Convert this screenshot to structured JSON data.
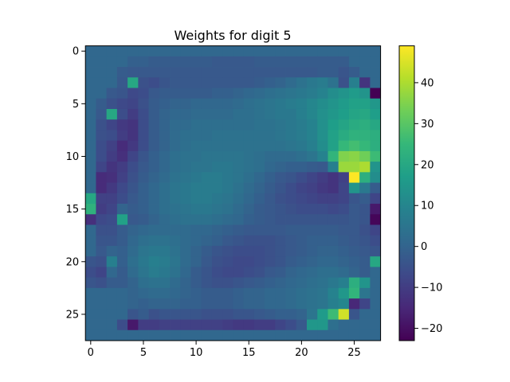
{
  "chart_data": {
    "type": "heatmap",
    "title": "Weights for digit 5",
    "xlabel": "",
    "ylabel": "",
    "rows": 28,
    "cols": 28,
    "x_ticks": [
      0,
      5,
      10,
      15,
      20,
      25
    ],
    "y_ticks": [
      0,
      5,
      10,
      15,
      20,
      25
    ],
    "colormap": "viridis",
    "colorbar": {
      "vmin": -23,
      "vmax": 49,
      "ticks": [
        -20,
        -10,
        0,
        10,
        20,
        30,
        40
      ]
    },
    "grid": false,
    "colors": {
      "viridis": [
        "#440154",
        "#482878",
        "#3e4989",
        "#31688e",
        "#26828e",
        "#1f9e89",
        "#35b779",
        "#6ece58",
        "#b5de2b",
        "#fde725"
      ]
    },
    "matrix": [
      [
        1,
        1,
        1,
        1,
        1,
        1,
        1,
        1,
        1,
        1,
        1,
        1,
        1,
        1,
        1,
        1,
        1,
        1,
        1,
        1,
        1,
        1,
        1,
        1,
        1,
        1,
        1,
        1
      ],
      [
        1,
        1,
        1,
        1,
        -1,
        -1,
        -2,
        -2,
        -2,
        -2,
        -2,
        -2,
        -3,
        -3,
        -3,
        -3,
        -2,
        -2,
        -2,
        -2,
        -2,
        -2,
        -2,
        -2,
        -2,
        1,
        1,
        1
      ],
      [
        1,
        1,
        1,
        -2,
        -3,
        -3,
        -3,
        -3,
        -3,
        -3,
        -3,
        -3,
        -3,
        -3,
        -3,
        -3,
        -3,
        -3,
        -3,
        -3,
        -3,
        -3,
        -2,
        -2,
        -4,
        -2,
        1,
        1
      ],
      [
        1,
        1,
        1,
        -3,
        20,
        -5,
        -6,
        -4,
        -3,
        -3,
        -3,
        -3,
        -3,
        -3,
        -3,
        -3,
        -2,
        -1,
        0,
        2,
        4,
        6,
        7,
        4,
        -5,
        8,
        -12,
        1
      ],
      [
        1,
        1,
        -3,
        -4,
        -7,
        -6,
        -3,
        -2,
        -2,
        -2,
        -2,
        -2,
        -1,
        -1,
        0,
        1,
        2,
        3,
        4,
        5,
        6,
        7,
        9,
        12,
        14,
        16,
        14,
        -23
      ],
      [
        1,
        -2,
        -5,
        -7,
        -8,
        -5,
        -2,
        -1,
        0,
        0,
        1,
        1,
        1,
        1,
        2,
        3,
        4,
        5,
        6,
        7,
        8,
        10,
        12,
        14,
        16,
        18,
        18,
        15
      ],
      [
        1,
        -3,
        20,
        -6,
        -10,
        -6,
        -2,
        0,
        1,
        1,
        2,
        2,
        2,
        2,
        3,
        3,
        4,
        5,
        6,
        6,
        8,
        10,
        13,
        15,
        17,
        19,
        20,
        17
      ],
      [
        1,
        -5,
        -8,
        -11,
        -12,
        -6,
        -2,
        0,
        2,
        2,
        3,
        3,
        3,
        3,
        3,
        3,
        4,
        4,
        5,
        6,
        7,
        9,
        13,
        17,
        19,
        21,
        22,
        20
      ],
      [
        1,
        -5,
        -6,
        -10,
        -12,
        -6,
        -2,
        0,
        2,
        3,
        3,
        3,
        4,
        4,
        4,
        4,
        4,
        4,
        5,
        6,
        7,
        9,
        13,
        18,
        21,
        23,
        23,
        22
      ],
      [
        1,
        -6,
        -9,
        -14,
        -11,
        -6,
        -2,
        0,
        2,
        3,
        4,
        4,
        4,
        4,
        4,
        4,
        4,
        4,
        4,
        5,
        6,
        8,
        12,
        18,
        25,
        27,
        25,
        22
      ],
      [
        1,
        -6,
        -10,
        -13,
        -8,
        -4,
        -1,
        1,
        3,
        4,
        4,
        5,
        5,
        5,
        5,
        4,
        3,
        2,
        2,
        2,
        3,
        5,
        9,
        24,
        35,
        36,
        33,
        26
      ],
      [
        1,
        -8,
        -12,
        -10,
        -6,
        -3,
        -1,
        1,
        3,
        4,
        5,
        5,
        6,
        6,
        5,
        4,
        3,
        1,
        0,
        -1,
        -1,
        -2,
        -3,
        8,
        38,
        38,
        40,
        14
      ],
      [
        1,
        -14,
        -13,
        -9,
        -5,
        -2,
        0,
        2,
        4,
        5,
        6,
        7,
        7,
        6,
        5,
        3,
        1,
        -1,
        -3,
        -4,
        -6,
        -8,
        -10,
        -12,
        -9,
        49,
        22,
        12
      ],
      [
        1,
        -14,
        -11,
        -7,
        -4,
        -1,
        1,
        3,
        5,
        6,
        7,
        7,
        7,
        6,
        4,
        2,
        0,
        -2,
        -4,
        -6,
        -8,
        -9,
        -11,
        -12,
        -8,
        14,
        6,
        -2
      ],
      [
        20,
        -9,
        -9,
        -6,
        -3,
        -1,
        1,
        3,
        5,
        6,
        7,
        7,
        6,
        5,
        3,
        1,
        -1,
        -3,
        -5,
        -6,
        -7,
        -8,
        -9,
        -9,
        -8,
        -4,
        -2,
        -8
      ],
      [
        23,
        -10,
        -8,
        0,
        -2,
        -1,
        1,
        3,
        4,
        5,
        6,
        6,
        5,
        4,
        2,
        0,
        -2,
        -3,
        -4,
        -5,
        -6,
        -6,
        -6,
        -7,
        -6,
        -3,
        -4,
        -18
      ],
      [
        -13,
        -7,
        -6,
        18,
        -3,
        -2,
        0,
        2,
        3,
        4,
        4,
        4,
        3,
        2,
        1,
        -1,
        -2,
        -3,
        -4,
        -4,
        -4,
        -4,
        -4,
        -4,
        -4,
        -3,
        -4,
        -22
      ],
      [
        1,
        -5,
        -5,
        -2,
        0,
        1,
        2,
        2,
        2,
        2,
        1,
        1,
        0,
        -1,
        -2,
        -3,
        -3,
        -3,
        -3,
        -2,
        -2,
        -2,
        -2,
        -2,
        -3,
        -3,
        -5,
        -8
      ],
      [
        1,
        -4,
        -4,
        -2,
        1,
        3,
        4,
        4,
        3,
        2,
        1,
        0,
        -1,
        -3,
        -4,
        -5,
        -5,
        -5,
        -4,
        -3,
        -2,
        -1,
        -1,
        -1,
        -2,
        -3,
        -4,
        -6
      ],
      [
        1,
        -3,
        0,
        -1,
        2,
        5,
        6,
        6,
        4,
        2,
        0,
        -2,
        -4,
        -5,
        -6,
        -6,
        -6,
        -5,
        -4,
        -3,
        -2,
        -1,
        0,
        0,
        -1,
        -2,
        -3,
        -4
      ],
      [
        -4,
        -5,
        8,
        -1,
        3,
        6,
        8,
        7,
        5,
        2,
        0,
        -3,
        -5,
        -6,
        -7,
        -7,
        -6,
        -5,
        -4,
        -2,
        -1,
        0,
        1,
        1,
        0,
        -1,
        -2,
        20
      ],
      [
        -6,
        -8,
        1,
        -2,
        2,
        5,
        7,
        6,
        4,
        1,
        -2,
        -4,
        -6,
        -7,
        -7,
        -6,
        -5,
        -3,
        -2,
        0,
        1,
        2,
        3,
        3,
        2,
        0,
        -2,
        1
      ],
      [
        -4,
        -5,
        -2,
        -2,
        0,
        3,
        4,
        4,
        2,
        0,
        -2,
        -4,
        -5,
        -5,
        -4,
        -3,
        -2,
        -1,
        0,
        1,
        2,
        3,
        4,
        6,
        8,
        22,
        14,
        1
      ],
      [
        1,
        1,
        1,
        1,
        0,
        1,
        2,
        2,
        1,
        0,
        -1,
        -2,
        -2,
        -2,
        -1,
        0,
        0,
        1,
        1,
        2,
        3,
        4,
        5,
        9,
        15,
        24,
        5,
        1
      ],
      [
        1,
        1,
        1,
        1,
        0,
        -1,
        0,
        0,
        0,
        -1,
        -1,
        -2,
        -2,
        -2,
        -1,
        0,
        0,
        1,
        1,
        2,
        3,
        4,
        5,
        8,
        10,
        -15,
        -8,
        1
      ],
      [
        1,
        1,
        1,
        1,
        -4,
        -2,
        -5,
        -4,
        -4,
        -4,
        -4,
        -5,
        -5,
        -5,
        -4,
        -4,
        -3,
        -2,
        -1,
        -1,
        0,
        5,
        16,
        26,
        44,
        -4,
        1,
        1
      ],
      [
        1,
        1,
        1,
        -6,
        -18,
        -10,
        -10,
        -9,
        -9,
        -9,
        -9,
        -9,
        -9,
        -10,
        -11,
        -11,
        -10,
        -10,
        -8,
        -6,
        -3,
        15,
        15,
        3,
        1,
        1,
        1,
        1
      ],
      [
        1,
        1,
        1,
        1,
        1,
        1,
        1,
        1,
        1,
        1,
        1,
        1,
        1,
        1,
        1,
        1,
        1,
        1,
        1,
        1,
        1,
        1,
        1,
        1,
        1,
        1,
        1,
        1
      ]
    ]
  }
}
